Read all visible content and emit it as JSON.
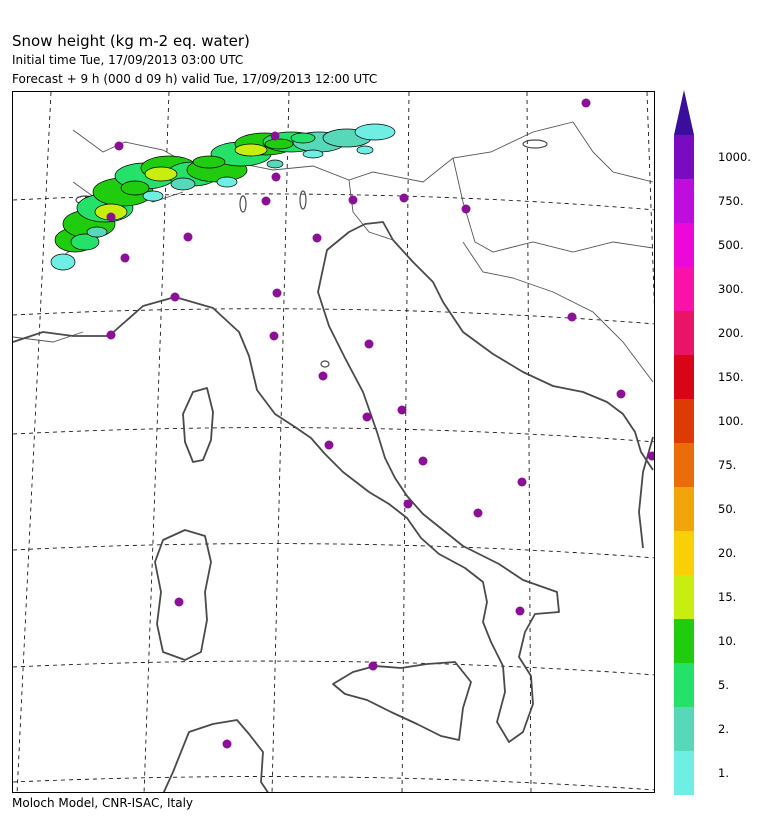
{
  "header": {
    "title": "Snow height (kg m-2 eq. water)",
    "initial_time": "Initial time  Tue, 17/09/2013  03:00 UTC",
    "forecast": "Forecast  +   9 h  (000 d 09 h)  valid Tue, 17/09/2013 12:00 UTC"
  },
  "footer": "Moloch Model, CNR-ISAC, Italy",
  "legend": {
    "labels": [
      "1.",
      "2.",
      "5.",
      "10.",
      "15.",
      "20.",
      "50.",
      "75.",
      "100.",
      "150.",
      "200.",
      "300.",
      "500.",
      "750.",
      "1000."
    ],
    "colors": [
      "#6feee4",
      "#57d9b9",
      "#25e069",
      "#20cc0e",
      "#c8ee10",
      "#f9d007",
      "#f2a50a",
      "#ea6d09",
      "#dc3c04",
      "#d90416",
      "#ea1467",
      "#fa11a7",
      "#eb08d8",
      "#c00ddd",
      "#7a0bc1"
    ],
    "arrow_color": "#3b0d9c"
  },
  "map": {
    "coastline_color": "#4a4a4a",
    "graticule_color": "#000000",
    "station_color": "#8b1097",
    "station_count": 35
  }
}
